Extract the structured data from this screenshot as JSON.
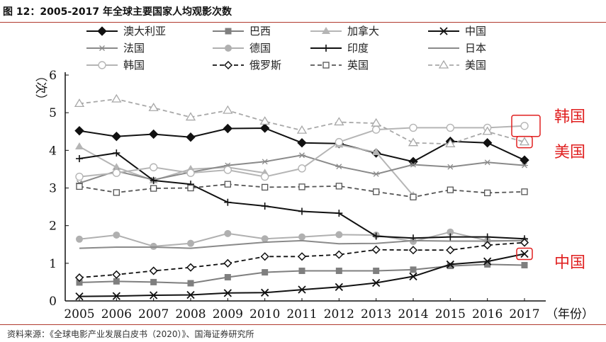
{
  "figure_title": "图 12：2005-2017 年全球主要国家人均观影次数",
  "source": "资料来源：《全球电影产业发展白皮书（2020）》、国海证券研究所",
  "chart_data": {
    "type": "line",
    "title": "",
    "xlabel": "（年份）",
    "ylabel": "（次）",
    "ylim": [
      0,
      6
    ],
    "yticks": [
      "0",
      "1",
      "2",
      "3",
      "4",
      "5",
      "6"
    ],
    "categories": [
      "2005",
      "2006",
      "2007",
      "2008",
      "2009",
      "2010",
      "2011",
      "2012",
      "2013",
      "2014",
      "2015",
      "2016",
      "2017"
    ],
    "legend_position": "top",
    "series": [
      {
        "name": "澳大利亚",
        "color": "#111111",
        "dash": "",
        "marker": "diamond-filled",
        "values": [
          4.52,
          4.37,
          4.43,
          4.35,
          4.58,
          4.59,
          4.2,
          4.18,
          3.93,
          3.7,
          4.24,
          4.2,
          3.74
        ]
      },
      {
        "name": "巴西",
        "color": "#7f7f7f",
        "dash": "",
        "marker": "square-filled",
        "values": [
          0.49,
          0.52,
          0.5,
          0.47,
          0.63,
          0.76,
          0.8,
          0.8,
          0.8,
          0.83,
          0.93,
          0.97,
          0.95
        ]
      },
      {
        "name": "加拿大",
        "color": "#b5b5b5",
        "dash": "",
        "marker": "triangle-filled",
        "values": [
          4.1,
          3.55,
          3.2,
          3.5,
          3.55,
          3.4,
          null,
          4.15,
          3.95,
          2.8,
          null,
          null,
          null
        ]
      },
      {
        "name": "中国",
        "color": "#111111",
        "dash": "",
        "marker": "x",
        "values": [
          0.12,
          0.13,
          0.15,
          0.16,
          0.21,
          0.22,
          0.3,
          0.37,
          0.48,
          0.65,
          0.97,
          1.05,
          1.25
        ]
      },
      {
        "name": "法国",
        "color": "#8a8a8a",
        "dash": "",
        "marker": "asterisk",
        "values": [
          3.13,
          3.45,
          3.22,
          3.42,
          3.6,
          3.7,
          3.87,
          3.57,
          3.37,
          3.62,
          3.56,
          3.68,
          3.6
        ]
      },
      {
        "name": "德国",
        "color": "#b0b0b0",
        "dash": "",
        "marker": "circle-filled",
        "values": [
          1.64,
          1.75,
          1.45,
          1.53,
          1.79,
          1.65,
          1.7,
          1.76,
          1.75,
          1.58,
          1.83,
          1.6,
          1.6
        ]
      },
      {
        "name": "印度",
        "color": "#111111",
        "dash": "",
        "marker": "plus",
        "values": [
          3.78,
          3.93,
          3.2,
          3.1,
          2.62,
          2.52,
          2.38,
          2.33,
          1.72,
          1.67,
          1.7,
          1.7,
          1.65
        ]
      },
      {
        "name": "日本",
        "color": "#8a8a8a",
        "dash": "",
        "marker": "none",
        "values": [
          1.4,
          1.43,
          1.43,
          1.4,
          1.48,
          1.56,
          1.6,
          1.52,
          1.53,
          1.6,
          1.59,
          1.59,
          1.6
        ]
      },
      {
        "name": "韩国",
        "color": "#b5b5b5",
        "dash": "",
        "marker": "circle-open",
        "values": [
          3.3,
          3.4,
          3.55,
          3.4,
          3.48,
          3.3,
          3.52,
          4.22,
          4.55,
          4.6,
          4.6,
          4.6,
          4.65
        ]
      },
      {
        "name": "俄罗斯",
        "color": "#111111",
        "dash": "6,4",
        "marker": "diamond-open",
        "values": [
          0.62,
          0.7,
          0.8,
          0.89,
          1.0,
          1.18,
          1.18,
          1.23,
          1.36,
          1.35,
          1.35,
          1.48,
          1.55
        ]
      },
      {
        "name": "英国",
        "color": "#555555",
        "dash": "6,4",
        "marker": "square-open",
        "values": [
          3.04,
          2.88,
          2.99,
          3.0,
          3.1,
          3.02,
          3.03,
          3.05,
          2.9,
          2.76,
          2.95,
          2.87,
          2.9
        ]
      },
      {
        "name": "美国",
        "color": "#a8a8a8",
        "dash": "6,4",
        "marker": "triangle-open",
        "values": [
          5.24,
          5.36,
          5.13,
          4.88,
          5.06,
          4.77,
          4.53,
          4.75,
          4.72,
          4.2,
          4.17,
          4.5,
          4.22
        ]
      }
    ],
    "annotations": [
      {
        "text": "韩国",
        "color": "#e02020",
        "series": "韩国"
      },
      {
        "text": "美国",
        "color": "#e02020",
        "series": "美国"
      },
      {
        "text": "中国",
        "color": "#e02020",
        "series": "中国"
      }
    ]
  }
}
